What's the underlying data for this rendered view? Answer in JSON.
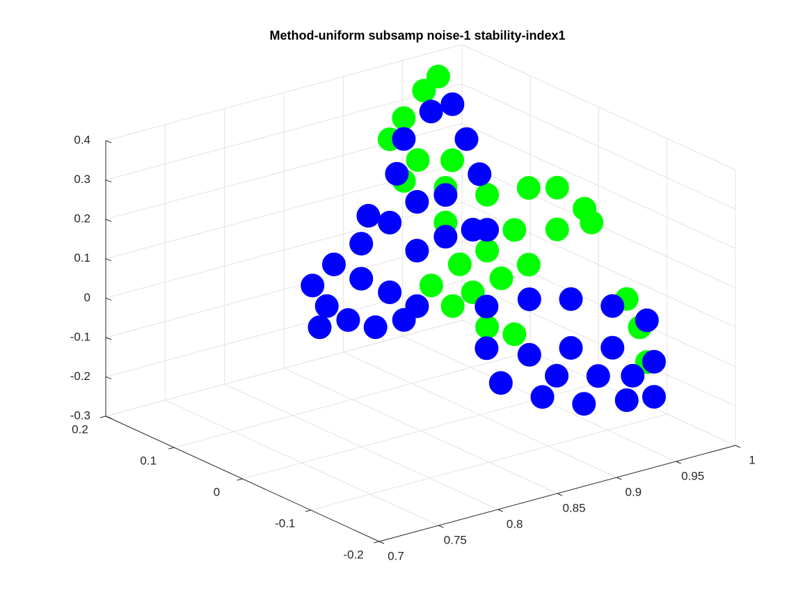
{
  "chart_data": {
    "type": "scatter3d",
    "title": "Method-uniform subsamp noise-1 stability-index1",
    "xlim": [
      0.7,
      1
    ],
    "xticks": [
      0.7,
      0.75,
      0.8,
      0.85,
      0.9,
      0.95,
      1
    ],
    "ylim": [
      -0.2,
      0.2
    ],
    "yticks": [
      -0.2,
      -0.1,
      0,
      0.1,
      0.2
    ],
    "zlim": [
      -0.3,
      0.4
    ],
    "zticks": [
      -0.3,
      -0.2,
      -0.1,
      0,
      0.1,
      0.2,
      0.3,
      0.4
    ],
    "grid": true,
    "series": [
      {
        "color": "#00ff00",
        "x": [
          0.951,
          0.968,
          0.98,
          0.939,
          0.934,
          0.963,
          0.836,
          0.871,
          0.906,
          0.941,
          0.965,
          0.988,
          0.994,
          0.965,
          0.929,
          0.906,
          0.883,
          0.859,
          0.847,
          0.877,
          0.906,
          0.929,
          0.894,
          0.941,
          0.918,
          0.871,
          0.966,
          0.977,
          0.983
        ],
        "y": [
          0.2,
          0.2,
          0.2,
          0.2,
          0.15,
          0.15,
          0,
          0,
          0,
          0,
          0,
          0,
          0,
          0,
          0,
          0,
          0,
          0,
          0,
          0,
          0,
          0,
          0,
          0,
          0,
          0,
          -0.1,
          -0.1,
          -0.1
        ],
        "z": [
          0.253,
          0.309,
          0.335,
          0.209,
          0.2,
          0.176,
          0.346,
          0.3,
          0.254,
          0.243,
          0.224,
          0.152,
          0.112,
          0.118,
          0.146,
          0.112,
          0.096,
          0.062,
          0.019,
          -0.005,
          -0.082,
          -0.119,
          0.016,
          0.048,
          0.032,
          0.212,
          0.02,
          -0.061,
          -0.154
        ]
      },
      {
        "color": "#0000ff",
        "x": [
          0.759,
          0.771,
          0.789,
          0.812,
          0.836,
          0.777,
          0.8,
          0.824,
          0.847,
          0.871,
          0.8,
          0.824,
          0.847,
          0.765,
          0.806,
          0.83,
          0.951,
          0.974,
          0.992,
          0.975,
          0.986,
          0.894,
          0.871,
          0.847,
          0.906,
          0.848,
          0.884,
          0.919,
          0.954,
          0.983,
          0.848,
          0.884,
          0.919,
          0.954,
          0.989,
          0.86,
          0.895,
          0.93,
          0.966,
          0.989,
          0.907,
          0.942,
          0.971
        ],
        "y": [
          0,
          0,
          0,
          0,
          0,
          0,
          0,
          0,
          0,
          0,
          0,
          0,
          0,
          0,
          0,
          0,
          0.2,
          0.2,
          0.2,
          0.15,
          0.15,
          0,
          0,
          0,
          0,
          -0.1,
          -0.1,
          -0.1,
          -0.1,
          -0.1,
          -0.1,
          -0.1,
          -0.1,
          -0.1,
          -0.1,
          -0.1,
          -0.1,
          -0.1,
          -0.1,
          -0.1,
          -0.1,
          -0.1,
          -0.1
        ],
        "z": [
          0.143,
          0.081,
          0.031,
          -0.006,
          -0.007,
          0.182,
          0.216,
          0.25,
          0.284,
          0.282,
          0.127,
          0.073,
          0.019,
          0.032,
          0.282,
          0.369,
          0.2,
          0.251,
          0.255,
          0.22,
          0.122,
          0.175,
          0.176,
          0.16,
          0.165,
          0.097,
          0.086,
          0.058,
          0.012,
          -0.048,
          -0.009,
          -0.055,
          -0.066,
          -0.094,
          -0.158,
          -0.107,
          -0.171,
          -0.217,
          -0.237,
          -0.247,
          -0.127,
          -0.156,
          -0.179
        ]
      }
    ]
  }
}
